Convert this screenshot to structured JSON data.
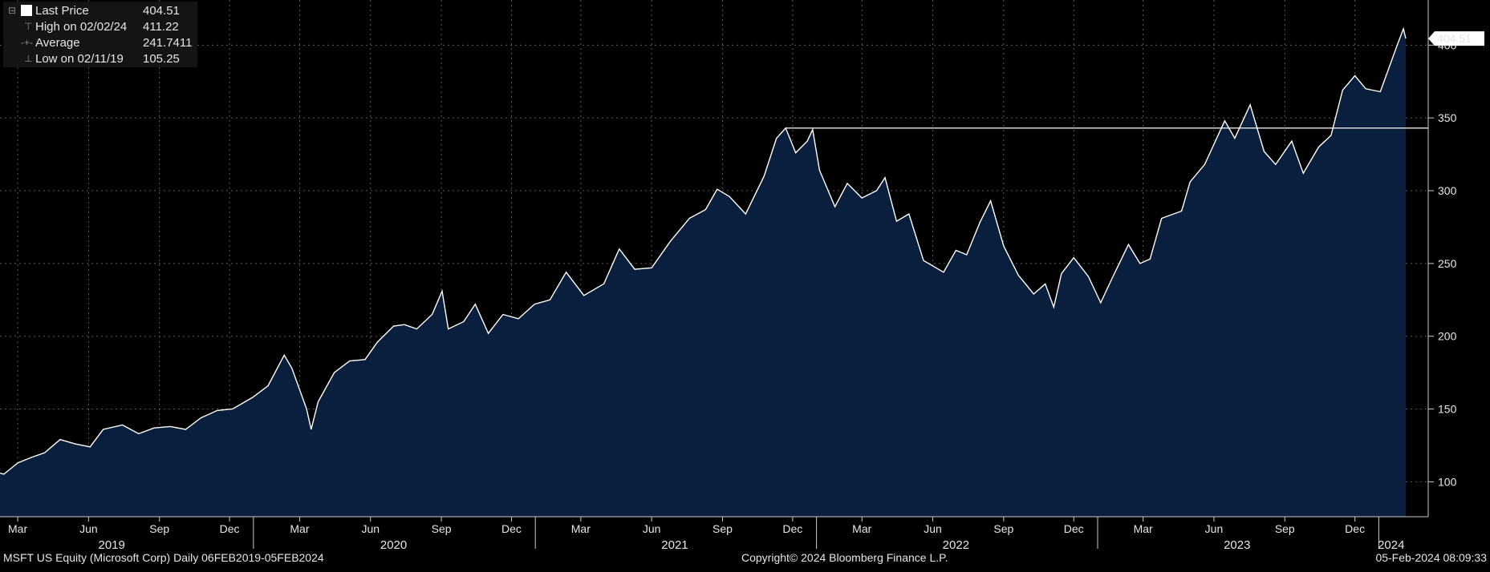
{
  "legend": {
    "last_price_label": "Last Price",
    "last_price_value": "404.51",
    "high_label": "High on 02/02/24",
    "high_value": "411.22",
    "average_label": "Average",
    "average_value": "241.7411",
    "low_label": "Low on 02/11/19",
    "low_value": "105.25"
  },
  "footer": {
    "security": "MSFT US Equity (Microsoft Corp)  Daily 06FEB2019-05FEB2024",
    "copyright": "Copyright© 2024 Bloomberg Finance L.P.",
    "timestamp": "05-Feb-2024 08:09:33"
  },
  "colors": {
    "background": "#000000",
    "area_fill": "#0a1f3d",
    "line": "#ffffff",
    "grid": "#5a5a5a",
    "reference_line": "#ffffff"
  },
  "chart_data": {
    "type": "area",
    "series": [
      {
        "name": "Last Price",
        "points": [
          [
            "2019-02-06",
            106
          ],
          [
            "2019-02-11",
            105.25
          ],
          [
            "2019-03-01",
            113
          ],
          [
            "2019-03-20",
            117
          ],
          [
            "2019-04-05",
            120
          ],
          [
            "2019-04-25",
            129
          ],
          [
            "2019-05-15",
            126
          ],
          [
            "2019-06-03",
            124
          ],
          [
            "2019-06-20",
            136
          ],
          [
            "2019-07-15",
            139
          ],
          [
            "2019-08-05",
            133
          ],
          [
            "2019-08-25",
            137
          ],
          [
            "2019-09-15",
            138
          ],
          [
            "2019-10-05",
            136
          ],
          [
            "2019-10-25",
            144
          ],
          [
            "2019-11-15",
            149
          ],
          [
            "2019-12-05",
            150
          ],
          [
            "2019-12-31",
            158
          ],
          [
            "2020-01-20",
            166
          ],
          [
            "2020-02-10",
            187
          ],
          [
            "2020-02-20",
            178
          ],
          [
            "2020-03-10",
            150
          ],
          [
            "2020-03-16",
            136
          ],
          [
            "2020-03-25",
            155
          ],
          [
            "2020-04-15",
            175
          ],
          [
            "2020-05-05",
            183
          ],
          [
            "2020-05-25",
            184
          ],
          [
            "2020-06-10",
            196
          ],
          [
            "2020-07-01",
            207
          ],
          [
            "2020-07-15",
            208
          ],
          [
            "2020-07-31",
            205
          ],
          [
            "2020-08-20",
            215
          ],
          [
            "2020-09-02",
            231
          ],
          [
            "2020-09-10",
            205
          ],
          [
            "2020-09-30",
            210
          ],
          [
            "2020-10-15",
            222
          ],
          [
            "2020-11-01",
            202
          ],
          [
            "2020-11-20",
            215
          ],
          [
            "2020-12-10",
            212
          ],
          [
            "2020-12-31",
            222
          ],
          [
            "2021-01-20",
            225
          ],
          [
            "2021-02-10",
            244
          ],
          [
            "2021-03-05",
            228
          ],
          [
            "2021-03-31",
            236
          ],
          [
            "2021-04-20",
            260
          ],
          [
            "2021-05-10",
            246
          ],
          [
            "2021-06-01",
            247
          ],
          [
            "2021-06-25",
            265
          ],
          [
            "2021-07-20",
            281
          ],
          [
            "2021-08-10",
            287
          ],
          [
            "2021-08-25",
            301
          ],
          [
            "2021-09-10",
            296
          ],
          [
            "2021-10-01",
            284
          ],
          [
            "2021-10-25",
            310
          ],
          [
            "2021-11-10",
            336
          ],
          [
            "2021-11-22",
            343
          ],
          [
            "2021-12-05",
            326
          ],
          [
            "2021-12-20",
            334
          ],
          [
            "2021-12-27",
            342
          ],
          [
            "2022-01-05",
            314
          ],
          [
            "2022-01-25",
            289
          ],
          [
            "2022-02-10",
            305
          ],
          [
            "2022-03-01",
            295
          ],
          [
            "2022-03-20",
            300
          ],
          [
            "2022-03-31",
            309
          ],
          [
            "2022-04-15",
            279
          ],
          [
            "2022-05-01",
            284
          ],
          [
            "2022-05-20",
            252
          ],
          [
            "2022-06-15",
            244
          ],
          [
            "2022-07-01",
            259
          ],
          [
            "2022-07-15",
            256
          ],
          [
            "2022-08-01",
            278
          ],
          [
            "2022-08-15",
            293
          ],
          [
            "2022-09-01",
            262
          ],
          [
            "2022-09-20",
            242
          ],
          [
            "2022-10-10",
            229
          ],
          [
            "2022-10-25",
            236
          ],
          [
            "2022-11-05",
            220
          ],
          [
            "2022-11-15",
            243
          ],
          [
            "2022-12-01",
            254
          ],
          [
            "2022-12-20",
            241
          ],
          [
            "2023-01-05",
            223
          ],
          [
            "2023-01-20",
            240
          ],
          [
            "2023-02-10",
            263
          ],
          [
            "2023-02-25",
            250
          ],
          [
            "2023-03-10",
            253
          ],
          [
            "2023-03-25",
            281
          ],
          [
            "2023-04-20",
            286
          ],
          [
            "2023-05-01",
            306
          ],
          [
            "2023-05-20",
            318
          ],
          [
            "2023-06-15",
            348
          ],
          [
            "2023-06-28",
            336
          ],
          [
            "2023-07-18",
            359
          ],
          [
            "2023-08-05",
            327
          ],
          [
            "2023-08-20",
            318
          ],
          [
            "2023-09-10",
            334
          ],
          [
            "2023-09-25",
            312
          ],
          [
            "2023-10-15",
            330
          ],
          [
            "2023-10-31",
            338
          ],
          [
            "2023-11-15",
            369
          ],
          [
            "2023-12-01",
            379
          ],
          [
            "2023-12-15",
            370
          ],
          [
            "2024-01-03",
            368
          ],
          [
            "2024-01-25",
            400
          ],
          [
            "2024-02-02",
            411.22
          ],
          [
            "2024-02-05",
            404.51
          ]
        ]
      }
    ],
    "x_range": [
      "2019-02-06",
      "2024-02-05"
    ],
    "ylim": [
      76,
      431
    ],
    "y_ticks": [
      100,
      150,
      200,
      250,
      300,
      350,
      400
    ],
    "x_month_ticks": [
      {
        "label": "Mar",
        "date": "2019-03-01"
      },
      {
        "label": "Jun",
        "date": "2019-06-01"
      },
      {
        "label": "Sep",
        "date": "2019-09-01"
      },
      {
        "label": "Dec",
        "date": "2019-12-01"
      },
      {
        "label": "Mar",
        "date": "2020-03-01"
      },
      {
        "label": "Jun",
        "date": "2020-06-01"
      },
      {
        "label": "Sep",
        "date": "2020-09-01"
      },
      {
        "label": "Dec",
        "date": "2020-12-01"
      },
      {
        "label": "Mar",
        "date": "2021-03-01"
      },
      {
        "label": "Jun",
        "date": "2021-06-01"
      },
      {
        "label": "Sep",
        "date": "2021-09-01"
      },
      {
        "label": "Dec",
        "date": "2021-12-01"
      },
      {
        "label": "Mar",
        "date": "2022-03-01"
      },
      {
        "label": "Jun",
        "date": "2022-06-01"
      },
      {
        "label": "Sep",
        "date": "2022-09-01"
      },
      {
        "label": "Dec",
        "date": "2022-12-01"
      },
      {
        "label": "Mar",
        "date": "2023-03-01"
      },
      {
        "label": "Jun",
        "date": "2023-06-01"
      },
      {
        "label": "Sep",
        "date": "2023-09-01"
      },
      {
        "label": "Dec",
        "date": "2023-12-01"
      }
    ],
    "x_year_labels": [
      {
        "label": "2019",
        "date": "2019-07-01"
      },
      {
        "label": "2020",
        "date": "2020-07-01"
      },
      {
        "label": "2021",
        "date": "2021-07-01"
      },
      {
        "label": "2022",
        "date": "2022-07-01"
      },
      {
        "label": "2023",
        "date": "2023-07-01"
      },
      {
        "label": "2024",
        "date": "2024-01-17"
      }
    ],
    "year_separators": [
      "2020-01-01",
      "2021-01-01",
      "2022-01-01",
      "2023-01-01",
      "2024-01-01"
    ],
    "reference_line": {
      "y": 343,
      "from": "2021-11-22",
      "to": "2024-02-05"
    },
    "last_price_marker": {
      "value": 404.51,
      "label": "404.51"
    },
    "grid": true
  }
}
